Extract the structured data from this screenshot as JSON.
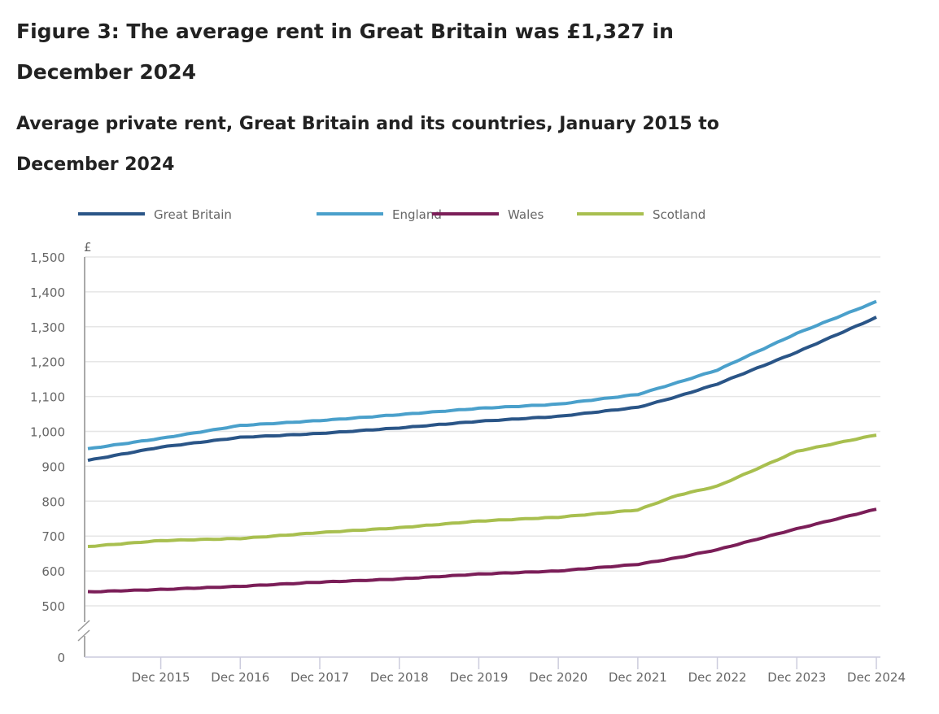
{
  "title": "Figure 3: The average rent in Great Britain was £1,327 in December 2024",
  "subtitle": "Average private rent, Great Britain and its countries, January 2015 to December 2024",
  "chart_data": {
    "type": "line",
    "ylabel": "£",
    "ylim": [
      500,
      1500
    ],
    "y_ticks": [
      "0",
      "500",
      "600",
      "700",
      "800",
      "900",
      "1,000",
      "1,100",
      "1,200",
      "1,300",
      "1,400",
      "1,500"
    ],
    "y_axis_break": true,
    "x_ticks": [
      "Dec 2015",
      "Dec 2016",
      "Dec 2017",
      "Dec 2018",
      "Dec 2019",
      "Dec 2020",
      "Dec 2021",
      "Dec 2022",
      "Dec 2023",
      "Dec 2024"
    ],
    "x_range": [
      "Jan 2015",
      "Dec 2024"
    ],
    "grid": true,
    "legend_position": "top",
    "x": [
      "Jan 2015",
      "Dec 2015",
      "Dec 2016",
      "Dec 2017",
      "Dec 2018",
      "Dec 2019",
      "Dec 2020",
      "Dec 2021",
      "Jun 2022",
      "Dec 2022",
      "Dec 2023",
      "Dec 2024"
    ],
    "series": [
      {
        "name": "Great Britain",
        "color": "#2a5587",
        "values": [
          917,
          955,
          983,
          994,
          1010,
          1029,
          1043,
          1069,
          1100,
          1136,
          1227,
          1327
        ]
      },
      {
        "name": "England",
        "color": "#4aa0cb",
        "values": [
          950,
          980,
          1017,
          1031,
          1048,
          1066,
          1078,
          1106,
          1140,
          1176,
          1281,
          1372
        ]
      },
      {
        "name": "Wales",
        "color": "#7b1e58",
        "values": [
          540,
          547,
          556,
          568,
          577,
          591,
          600,
          619,
          638,
          661,
          721,
          777
        ]
      },
      {
        "name": "Scotland",
        "color": "#a8bf4f",
        "values": [
          670,
          687,
          693,
          710,
          724,
          743,
          754,
          775,
          817,
          843,
          943,
          990
        ]
      }
    ]
  }
}
